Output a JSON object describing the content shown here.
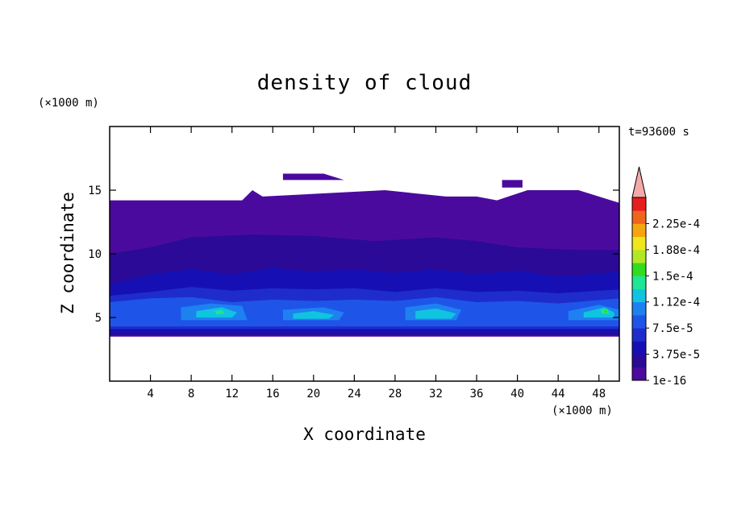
{
  "chart_data": {
    "type": "heatmap",
    "title": "density of cloud",
    "xlabel": "X coordinate",
    "ylabel": "Z coordinate",
    "x_unit": "(×1000 m)",
    "y_unit": "(×1000 m)",
    "time_label": "t=93600 s",
    "xlim": [
      0,
      50
    ],
    "ylim": [
      0,
      20
    ],
    "x_ticks": [
      4,
      8,
      12,
      16,
      20,
      24,
      28,
      32,
      36,
      40,
      44,
      48
    ],
    "y_ticks": [
      5,
      10,
      15
    ],
    "colorbar": {
      "levels": [
        1e-16,
        1.875e-05,
        3.75e-05,
        5.625e-05,
        7.5e-05,
        9.375e-05,
        0.0001125,
        0.00013125,
        0.00015,
        0.00016875,
        0.0001875,
        0.00020625,
        0.000225,
        0.00024375
      ],
      "tick_labels": [
        "1e-16",
        "3.75e-5",
        "7.5e-5",
        "1.12e-4",
        "1.5e-4",
        "1.88e-4",
        "2.25e-4"
      ],
      "colors": [
        "#4b0a9e",
        "#2a0a96",
        "#1610b4",
        "#1f2ccc",
        "#1e55e8",
        "#1d82f0",
        "#10c4e0",
        "#1ee694",
        "#32dc1e",
        "#b4e628",
        "#f0e61e",
        "#f5a50f",
        "#f0641e",
        "#e61e1e"
      ],
      "extend_color": "#f5aaaa"
    },
    "layers": [
      {
        "level": 0,
        "segments": [
          [
            0,
            14.2
          ],
          [
            13,
            14.2
          ],
          [
            14,
            15
          ],
          [
            15,
            14.5
          ],
          [
            27,
            15
          ],
          [
            33,
            14.5
          ],
          [
            36,
            14.5
          ],
          [
            38,
            14.2
          ],
          [
            41,
            15
          ],
          [
            46,
            15
          ],
          [
            50,
            14
          ],
          [
            50,
            3.5
          ],
          [
            0,
            3.5
          ]
        ]
      },
      {
        "level": 0,
        "segments": [
          [
            17,
            16.3
          ],
          [
            21,
            16.3
          ],
          [
            23,
            15.8
          ],
          [
            17,
            15.8
          ]
        ]
      },
      {
        "level": 0,
        "segments": [
          [
            38.5,
            15.8
          ],
          [
            40.5,
            15.8
          ],
          [
            40.5,
            15.2
          ],
          [
            38.5,
            15.2
          ]
        ]
      },
      {
        "level": 1,
        "segments": [
          [
            0,
            10
          ],
          [
            4,
            10.5
          ],
          [
            8,
            11.3
          ],
          [
            14,
            11.5
          ],
          [
            20,
            11.4
          ],
          [
            26,
            11
          ],
          [
            32,
            11.3
          ],
          [
            36,
            11
          ],
          [
            40,
            10.5
          ],
          [
            46,
            10.3
          ],
          [
            50,
            10.3
          ],
          [
            50,
            3.6
          ],
          [
            0,
            3.6
          ]
        ]
      },
      {
        "level": 2,
        "segments": [
          [
            0,
            7.6
          ],
          [
            4,
            8.4
          ],
          [
            8,
            8.8
          ],
          [
            12,
            8.4
          ],
          [
            16,
            8.9
          ],
          [
            20,
            8.6
          ],
          [
            24,
            8.8
          ],
          [
            28,
            8.5
          ],
          [
            32,
            8.8
          ],
          [
            36,
            8.4
          ],
          [
            40,
            8.7
          ],
          [
            44,
            8.2
          ],
          [
            50,
            8.6
          ],
          [
            50,
            3.8
          ],
          [
            0,
            3.8
          ]
        ]
      },
      {
        "level": 3,
        "segments": [
          [
            0,
            6.7
          ],
          [
            4,
            7
          ],
          [
            8,
            7.4
          ],
          [
            12,
            7.1
          ],
          [
            16,
            7.3
          ],
          [
            20,
            7.2
          ],
          [
            24,
            7.3
          ],
          [
            28,
            7
          ],
          [
            32,
            7.3
          ],
          [
            36,
            7
          ],
          [
            40,
            7.1
          ],
          [
            44,
            6.9
          ],
          [
            50,
            7.2
          ],
          [
            50,
            4.1
          ],
          [
            0,
            4.1
          ]
        ]
      },
      {
        "level": 4,
        "segments": [
          [
            0,
            6.2
          ],
          [
            4,
            6.5
          ],
          [
            8,
            6.6
          ],
          [
            12,
            6.2
          ],
          [
            16,
            6.4
          ],
          [
            20,
            6.3
          ],
          [
            24,
            6.4
          ],
          [
            28,
            6.3
          ],
          [
            32,
            6.6
          ],
          [
            36,
            6.2
          ],
          [
            40,
            6.3
          ],
          [
            44,
            6.1
          ],
          [
            50,
            6.5
          ],
          [
            50,
            4.3
          ],
          [
            0,
            4.3
          ]
        ]
      },
      {
        "level": 5,
        "segments": [
          [
            7,
            5.8
          ],
          [
            10,
            6.1
          ],
          [
            13,
            5.9
          ],
          [
            13.5,
            4.8
          ],
          [
            7,
            4.8
          ]
        ]
      },
      {
        "level": 5,
        "segments": [
          [
            17,
            5.6
          ],
          [
            21,
            5.8
          ],
          [
            23,
            5.4
          ],
          [
            22.5,
            4.8
          ],
          [
            17,
            4.8
          ]
        ]
      },
      {
        "level": 5,
        "segments": [
          [
            29,
            5.8
          ],
          [
            32,
            6.1
          ],
          [
            34.5,
            5.6
          ],
          [
            34,
            4.8
          ],
          [
            29,
            4.8
          ]
        ]
      },
      {
        "level": 5,
        "segments": [
          [
            45,
            5.5
          ],
          [
            48,
            6
          ],
          [
            50,
            5.6
          ],
          [
            50,
            4.8
          ],
          [
            45,
            4.8
          ]
        ]
      },
      {
        "level": 6,
        "segments": [
          [
            8.5,
            5.5
          ],
          [
            11,
            5.8
          ],
          [
            12.5,
            5.4
          ],
          [
            12,
            5
          ],
          [
            8.5,
            5
          ]
        ]
      },
      {
        "level": 6,
        "segments": [
          [
            18,
            5.3
          ],
          [
            20,
            5.5
          ],
          [
            22,
            5.2
          ],
          [
            21.5,
            4.9
          ],
          [
            18,
            4.9
          ]
        ]
      },
      {
        "level": 6,
        "segments": [
          [
            30,
            5.5
          ],
          [
            32,
            5.7
          ],
          [
            34,
            5.3
          ],
          [
            33.5,
            4.9
          ],
          [
            30,
            4.9
          ]
        ]
      },
      {
        "level": 6,
        "segments": [
          [
            46.5,
            5.4
          ],
          [
            48.5,
            5.8
          ],
          [
            49.5,
            5.4
          ],
          [
            49.5,
            5
          ],
          [
            46.5,
            5
          ]
        ]
      },
      {
        "level": 7,
        "segments": [
          [
            10.3,
            5.5
          ],
          [
            11,
            5.6
          ],
          [
            11.3,
            5.3
          ],
          [
            10.5,
            5.25
          ]
        ]
      },
      {
        "level": 7,
        "segments": [
          [
            48.2,
            5.6
          ],
          [
            48.8,
            5.7
          ],
          [
            49,
            5.3
          ],
          [
            48.3,
            5.3
          ]
        ]
      },
      {
        "level": 8,
        "segments": [
          [
            48.5,
            5.55
          ],
          [
            48.8,
            5.6
          ],
          [
            48.8,
            5.4
          ],
          [
            48.5,
            5.4
          ]
        ]
      }
    ]
  }
}
